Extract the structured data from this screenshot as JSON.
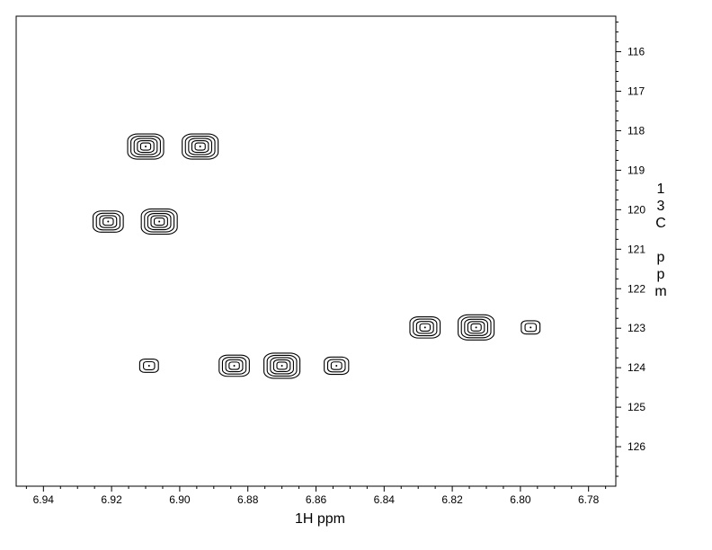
{
  "chart_data": {
    "type": "contour",
    "xlabel": "1H ppm",
    "ylabel": "13C ppm",
    "x_reversed": true,
    "y_reversed": true,
    "xlim": [
      6.948,
      6.772
    ],
    "ylim": [
      115.1,
      127.0
    ],
    "x_ticks": [
      "6.94",
      "6.92",
      "6.90",
      "6.88",
      "6.86",
      "6.84",
      "6.82",
      "6.80",
      "6.78"
    ],
    "y_ticks": [
      "116",
      "117",
      "118",
      "119",
      "120",
      "121",
      "122",
      "123",
      "124",
      "125",
      "126"
    ],
    "y_axis_side": "right",
    "grid": false,
    "contour_color": "#000000",
    "peaks": [
      {
        "h": 6.91,
        "c": 118.4,
        "levels": 5
      },
      {
        "h": 6.894,
        "c": 118.4,
        "levels": 5
      },
      {
        "h": 6.921,
        "c": 120.3,
        "levels": 4
      },
      {
        "h": 6.906,
        "c": 120.3,
        "levels": 5
      },
      {
        "h": 6.828,
        "c": 122.98,
        "levels": 4
      },
      {
        "h": 6.813,
        "c": 122.98,
        "levels": 5
      },
      {
        "h": 6.797,
        "c": 122.98,
        "levels": 2
      },
      {
        "h": 6.909,
        "c": 123.95,
        "levels": 2
      },
      {
        "h": 6.884,
        "c": 123.95,
        "levels": 4
      },
      {
        "h": 6.87,
        "c": 123.95,
        "levels": 5
      },
      {
        "h": 6.854,
        "c": 123.95,
        "levels": 3
      }
    ]
  }
}
